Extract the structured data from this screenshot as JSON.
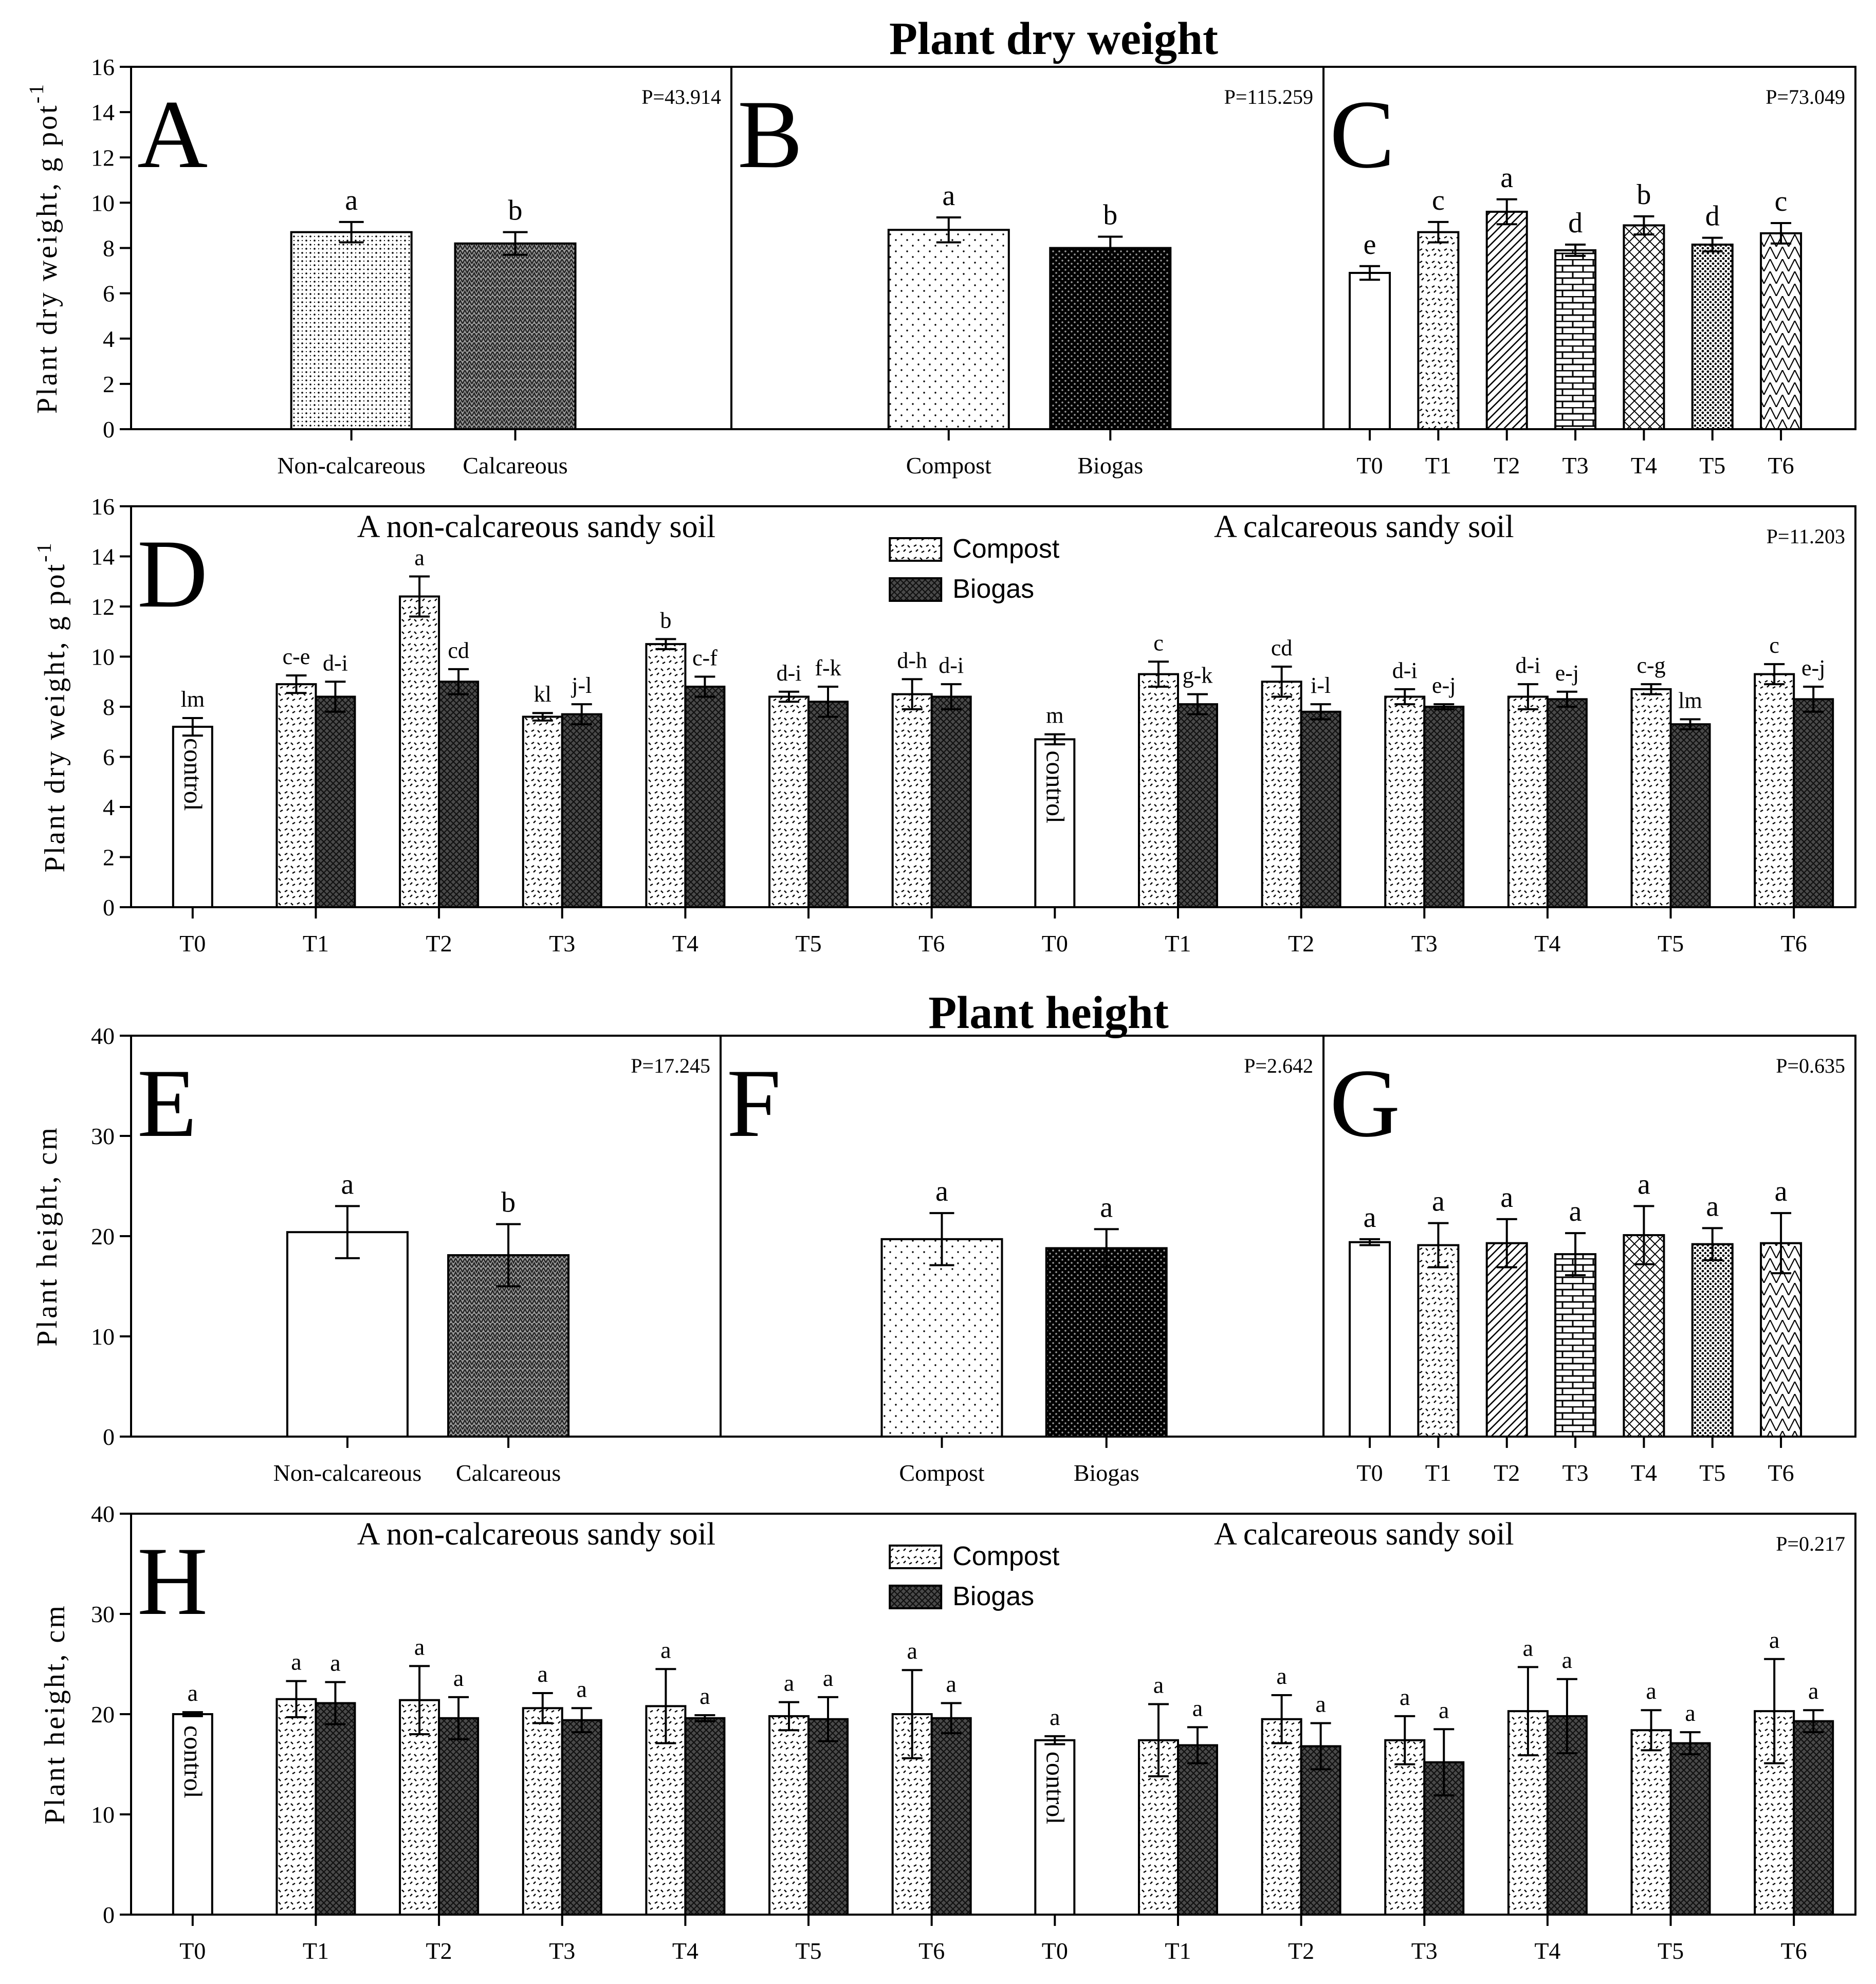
{
  "figure": {
    "title_top": "Plant dry weight",
    "title_bottom": "Plant height"
  },
  "chart_data": [
    {
      "id": "A",
      "type": "bar",
      "panel_label": "A",
      "stat": "P=43.914",
      "ylabel": "Plant dry weight, g pot",
      "ylabel_sup": "-1",
      "ylim": [
        0,
        16
      ],
      "yticks": [
        0,
        2,
        4,
        6,
        8,
        10,
        12,
        14,
        16
      ],
      "categories": [
        "Non-calcareous",
        "Calcareous"
      ],
      "values": [
        8.7,
        8.2
      ],
      "errors": [
        0.45,
        0.5
      ],
      "letters": [
        "a",
        "b"
      ],
      "patterns": [
        "dots",
        "weave"
      ]
    },
    {
      "id": "B",
      "type": "bar",
      "panel_label": "B",
      "stat": "P=115.259",
      "ylim": [
        0,
        16
      ],
      "categories": [
        "Compost",
        "Biogas"
      ],
      "values": [
        8.8,
        8.0
      ],
      "errors": [
        0.55,
        0.5
      ],
      "letters": [
        "a",
        "b"
      ],
      "patterns": [
        "sparse",
        "dark"
      ]
    },
    {
      "id": "C",
      "type": "bar",
      "panel_label": "C",
      "stat": "P=73.049",
      "ylim": [
        0,
        16
      ],
      "categories": [
        "T0",
        "T1",
        "T2",
        "T3",
        "T4",
        "T5",
        "T6"
      ],
      "values": [
        6.9,
        8.7,
        9.6,
        7.9,
        9.0,
        8.15,
        8.65
      ],
      "errors": [
        0.3,
        0.45,
        0.55,
        0.25,
        0.4,
        0.3,
        0.45
      ],
      "letters": [
        "e",
        "c",
        "a",
        "d",
        "b",
        "d",
        "c"
      ],
      "patterns": [
        "blank",
        "compost",
        "diag",
        "brick",
        "cross",
        "dense",
        "zigzag"
      ]
    },
    {
      "id": "D",
      "type": "bar",
      "panel_label": "D",
      "stat": "P=11.203",
      "ylabel": "Plant dry weight, g pot",
      "ylabel_sup": "-1",
      "ylim": [
        0,
        16
      ],
      "yticks": [
        0,
        2,
        4,
        6,
        8,
        10,
        12,
        14,
        16
      ],
      "group_labels": [
        "A non-calcareous sandy soil",
        "A calcareous sandy soil"
      ],
      "legend": [
        "Compost",
        "Biogas"
      ],
      "control_label": "control",
      "categories": [
        "T0",
        "T1",
        "T2",
        "T3",
        "T4",
        "T5",
        "T6",
        "T0",
        "T1",
        "T2",
        "T3",
        "T4",
        "T5",
        "T6"
      ],
      "series": [
        {
          "name": "Compost",
          "values": [
            7.2,
            8.9,
            12.4,
            7.6,
            10.5,
            8.4,
            8.5,
            6.7,
            9.3,
            9.0,
            8.4,
            8.4,
            8.7,
            9.3
          ],
          "errors": [
            0.35,
            0.35,
            0.8,
            0.15,
            0.2,
            0.2,
            0.6,
            0.2,
            0.5,
            0.6,
            0.3,
            0.5,
            0.2,
            0.4
          ],
          "letters": [
            "lm",
            "c-e",
            "a",
            "kl",
            "b",
            "d-i",
            "d-h",
            "m",
            "c",
            "cd",
            "d-i",
            "d-i",
            "c-g",
            "c"
          ]
        },
        {
          "name": "Biogas",
          "values": [
            null,
            8.4,
            9.0,
            7.7,
            8.8,
            8.2,
            8.4,
            null,
            8.1,
            7.8,
            8.0,
            8.3,
            7.3,
            8.3
          ],
          "errors": [
            null,
            0.6,
            0.5,
            0.4,
            0.4,
            0.6,
            0.5,
            null,
            0.4,
            0.3,
            0.1,
            0.3,
            0.2,
            0.5
          ],
          "letters": [
            "",
            "d-i",
            "cd",
            "j-l",
            "c-f",
            "f-k",
            "d-i",
            "",
            "g-k",
            "i-l",
            "e-j",
            "e-j",
            "lm",
            "e-j"
          ]
        }
      ]
    },
    {
      "id": "E",
      "type": "bar",
      "panel_label": "E",
      "stat": "P=17.245",
      "ylabel": "Plant height, cm",
      "ylim": [
        0,
        40
      ],
      "yticks": [
        0,
        10,
        20,
        30,
        40
      ],
      "categories": [
        "Non-calcareous",
        "Calcareous"
      ],
      "values": [
        20.4,
        18.1
      ],
      "errors": [
        2.6,
        3.1
      ],
      "letters": [
        "a",
        "b"
      ],
      "patterns": [
        "blank",
        "weave"
      ]
    },
    {
      "id": "F",
      "type": "bar",
      "panel_label": "F",
      "stat": "P=2.642",
      "ylim": [
        0,
        40
      ],
      "categories": [
        "Compost",
        "Biogas"
      ],
      "values": [
        19.7,
        18.8
      ],
      "errors": [
        2.6,
        1.9
      ],
      "letters": [
        "a",
        "a"
      ],
      "patterns": [
        "sparse",
        "dark"
      ]
    },
    {
      "id": "G",
      "type": "bar",
      "panel_label": "G",
      "stat": "P=0.635",
      "ylim": [
        0,
        40
      ],
      "categories": [
        "T0",
        "T1",
        "T2",
        "T3",
        "T4",
        "T5",
        "T6"
      ],
      "values": [
        19.4,
        19.1,
        19.3,
        18.2,
        20.1,
        19.2,
        19.3
      ],
      "errors": [
        0.3,
        2.2,
        2.4,
        2.1,
        2.9,
        1.6,
        3.0
      ],
      "letters": [
        "a",
        "a",
        "a",
        "a",
        "a",
        "a",
        "a"
      ],
      "patterns": [
        "blank",
        "compost",
        "diag",
        "brick",
        "cross",
        "dense",
        "zigzag"
      ]
    },
    {
      "id": "H",
      "type": "bar",
      "panel_label": "H",
      "stat": "P=0.217",
      "ylabel": "Plant height, cm",
      "ylim": [
        0,
        40
      ],
      "yticks": [
        0,
        10,
        20,
        30,
        40
      ],
      "group_labels": [
        "A non-calcareous sandy soil",
        "A calcareous sandy soil"
      ],
      "legend": [
        "Compost",
        "Biogas"
      ],
      "control_label": "control",
      "categories": [
        "T0",
        "T1",
        "T2",
        "T3",
        "T4",
        "T5",
        "T6",
        "T0",
        "T1",
        "T2",
        "T3",
        "T4",
        "T5",
        "T6"
      ],
      "series": [
        {
          "name": "Compost",
          "values": [
            20.0,
            21.5,
            21.4,
            20.6,
            20.8,
            19.8,
            20.0,
            17.4,
            17.4,
            19.5,
            17.4,
            20.3,
            18.4,
            20.3
          ],
          "errors": [
            0.2,
            1.8,
            3.4,
            1.5,
            3.7,
            1.4,
            4.4,
            0.4,
            3.6,
            2.4,
            2.4,
            4.4,
            2.0,
            5.2
          ],
          "letters": [
            "a",
            "a",
            "a",
            "a",
            "a",
            "a",
            "a",
            "a",
            "a",
            "a",
            "a",
            "a",
            "a",
            "a"
          ]
        },
        {
          "name": "Biogas",
          "values": [
            null,
            21.1,
            19.6,
            19.4,
            19.6,
            19.5,
            19.6,
            null,
            16.9,
            16.8,
            15.2,
            19.8,
            17.1,
            19.3
          ],
          "errors": [
            null,
            2.1,
            2.1,
            1.2,
            0.3,
            2.2,
            1.5,
            null,
            1.8,
            2.3,
            3.3,
            3.7,
            1.1,
            1.1
          ],
          "letters": [
            "",
            "a",
            "a",
            "a",
            "a",
            "a",
            "a",
            "",
            "a",
            "a",
            "a",
            "a",
            "a",
            "a"
          ]
        }
      ]
    }
  ]
}
